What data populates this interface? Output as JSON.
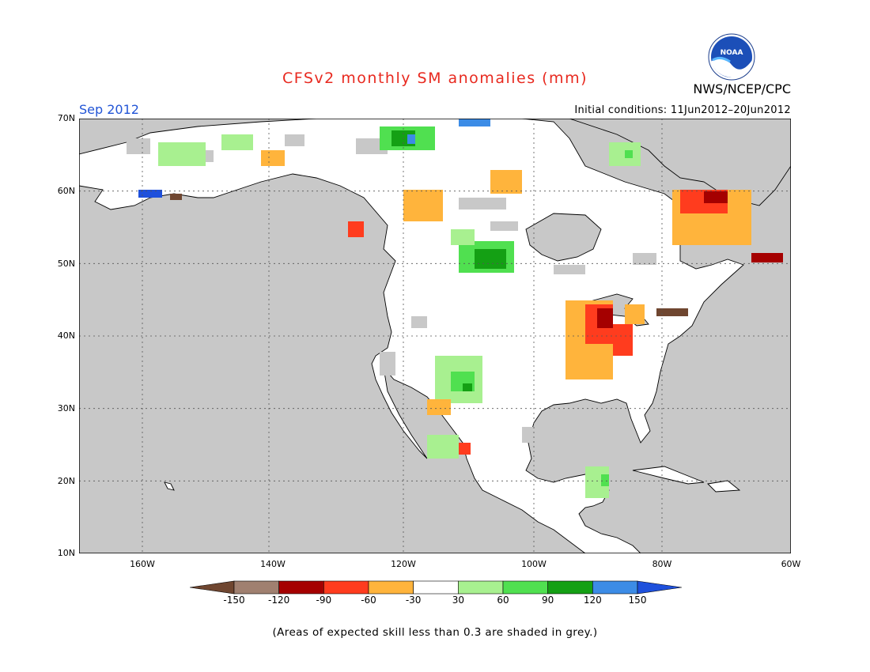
{
  "title": "CFSv2 monthly SM anomalies (mm)",
  "forecast_month": "Sep 2012",
  "agency": "NWS/NCEP/CPC",
  "logo_text": "NOAA",
  "initial_conditions": "Initial conditions: 11Jun2012–20Jun2012",
  "footnote": "(Areas of expected skill less than 0.3 are shaded in grey.)",
  "lat_labels": [
    "70N",
    "60N",
    "50N",
    "40N",
    "30N",
    "20N",
    "10N"
  ],
  "lon_labels": [
    "160W",
    "140W",
    "120W",
    "100W",
    "80W",
    "60W"
  ],
  "colorbar": {
    "labels": [
      "-150",
      "-120",
      "-90",
      "-60",
      "-30",
      "30",
      "60",
      "90",
      "120",
      "150"
    ],
    "colors": [
      "#6f4630",
      "#a08070",
      "#a50000",
      "#ff3c1e",
      "#ffb43c",
      "#ffffff",
      "#a8f090",
      "#50e050",
      "#14a014",
      "#3c8ce6",
      "#1e50dc"
    ]
  },
  "colors": {
    "land_grey": "#c8c8c8",
    "ocean": "#c8c8c8",
    "land": "#ffffff",
    "title": "#e8291f",
    "month": "#2255d6"
  },
  "map_extent": {
    "lon": [
      -172,
      -60
    ],
    "lat": [
      10,
      70
    ]
  }
}
